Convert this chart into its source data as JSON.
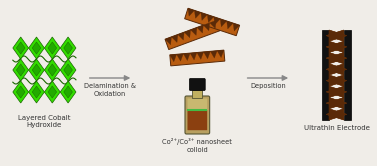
{
  "bg_color": "#f0ede8",
  "arrow_color": "#888888",
  "green_dark": "#1a6600",
  "green_light": "#33dd00",
  "green_mid": "#22aa00",
  "brown_dark": "#5a2a08",
  "brown_mid": "#b85c10",
  "brown_light": "#cc7a20",
  "text_color": "#333333",
  "label_layered": "Layered Cobalt\nHydroxide",
  "label_arrow1": "Delamination &\nOxidation",
  "label_colloid": "Co²⁺/Co³⁺ nanosheet\ncolloid",
  "label_arrow2": "Deposition",
  "label_electrode": "Ultrathin Electrode",
  "figsize": [
    3.77,
    1.66
  ],
  "dpi": 100
}
